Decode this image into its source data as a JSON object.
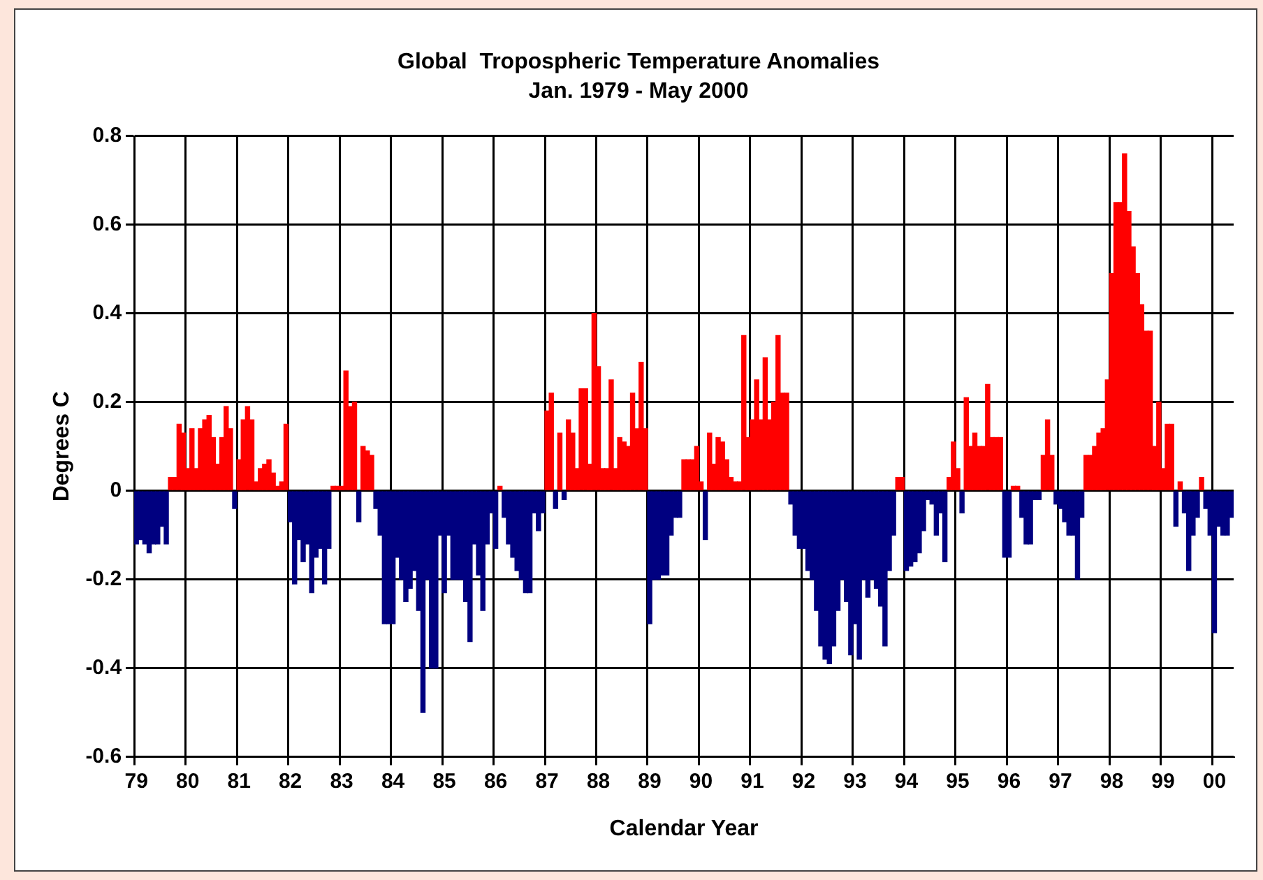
{
  "chart_data": {
    "type": "bar",
    "title": "Global  Tropospheric Temperature Anomalies",
    "subtitle": "Jan. 1979 - May 2000",
    "xlabel": "Calendar Year",
    "ylabel": "Degrees C",
    "categories": [
      "79",
      null,
      null,
      null,
      null,
      null,
      null,
      null,
      null,
      null,
      null,
      null,
      "80",
      null,
      null,
      null,
      null,
      null,
      null,
      null,
      null,
      null,
      null,
      null,
      "81",
      null,
      null,
      null,
      null,
      null,
      null,
      null,
      null,
      null,
      null,
      null,
      "82",
      null,
      null,
      null,
      null,
      null,
      null,
      null,
      null,
      null,
      null,
      null,
      "83",
      null,
      null,
      null,
      null,
      null,
      null,
      null,
      null,
      null,
      null,
      null,
      "84",
      null,
      null,
      null,
      null,
      null,
      null,
      null,
      null,
      null,
      null,
      null,
      "85",
      null,
      null,
      null,
      null,
      null,
      null,
      null,
      null,
      null,
      null,
      null,
      "86",
      null,
      null,
      null,
      null,
      null,
      null,
      null,
      null,
      null,
      null,
      null,
      "87",
      null,
      null,
      null,
      null,
      null,
      null,
      null,
      null,
      null,
      null,
      null,
      "88",
      null,
      null,
      null,
      null,
      null,
      null,
      null,
      null,
      null,
      null,
      null,
      "89",
      null,
      null,
      null,
      null,
      null,
      null,
      null,
      null,
      null,
      null,
      null,
      "90",
      null,
      null,
      null,
      null,
      null,
      null,
      null,
      null,
      null,
      null,
      null,
      "91",
      null,
      null,
      null,
      null,
      null,
      null,
      null,
      null,
      null,
      null,
      null,
      "92",
      null,
      null,
      null,
      null,
      null,
      null,
      null,
      null,
      null,
      null,
      null,
      "93",
      null,
      null,
      null,
      null,
      null,
      null,
      null,
      null,
      null,
      null,
      null,
      "94",
      null,
      null,
      null,
      null,
      null,
      null,
      null,
      null,
      null,
      null,
      null,
      "95",
      null,
      null,
      null,
      null,
      null,
      null,
      null,
      null,
      null,
      null,
      null,
      "96",
      null,
      null,
      null,
      null,
      null,
      null,
      null,
      null,
      null,
      null,
      null,
      "97",
      null,
      null,
      null,
      null,
      null,
      null,
      null,
      null,
      null,
      null,
      null,
      "98",
      null,
      null,
      null,
      null,
      null,
      null,
      null,
      null,
      null,
      null,
      null,
      "99",
      null,
      null,
      null,
      null,
      null,
      null,
      null,
      null,
      null,
      null,
      null,
      "00",
      null,
      null,
      null,
      null
    ],
    "values": [
      -0.12,
      -0.11,
      -0.12,
      -0.14,
      -0.12,
      -0.12,
      -0.08,
      -0.12,
      0.03,
      0.03,
      0.15,
      0.13,
      0.05,
      0.14,
      0.05,
      0.14,
      0.16,
      0.17,
      0.12,
      0.06,
      0.12,
      0.19,
      0.14,
      -0.04,
      0.07,
      0.16,
      0.19,
      0.16,
      0.02,
      0.05,
      0.06,
      0.07,
      0.04,
      0.01,
      0.02,
      0.15,
      -0.07,
      -0.21,
      -0.11,
      -0.16,
      -0.12,
      -0.23,
      -0.15,
      -0.13,
      -0.21,
      -0.13,
      0.01,
      0.01,
      0.01,
      0.27,
      0.19,
      0.2,
      -0.07,
      0.1,
      0.09,
      0.08,
      -0.04,
      -0.1,
      -0.3,
      -0.3,
      -0.3,
      -0.15,
      -0.2,
      -0.25,
      -0.22,
      -0.18,
      -0.27,
      -0.5,
      -0.2,
      -0.4,
      -0.4,
      -0.1,
      -0.23,
      -0.1,
      -0.2,
      -0.2,
      -0.2,
      -0.25,
      -0.34,
      -0.12,
      -0.19,
      -0.27,
      -0.12,
      -0.05,
      -0.13,
      0.01,
      -0.06,
      -0.12,
      -0.15,
      -0.18,
      -0.2,
      -0.23,
      -0.23,
      -0.05,
      -0.09,
      -0.05,
      0.18,
      0.22,
      -0.04,
      0.13,
      -0.02,
      0.16,
      0.13,
      0.05,
      0.23,
      0.23,
      0.06,
      0.4,
      0.28,
      0.05,
      0.05,
      0.25,
      0.05,
      0.12,
      0.11,
      0.1,
      0.22,
      0.14,
      0.29,
      0.14,
      -0.3,
      -0.2,
      -0.2,
      -0.19,
      -0.19,
      -0.1,
      -0.06,
      -0.06,
      0.07,
      0.07,
      0.07,
      0.1,
      0.02,
      -0.11,
      0.13,
      0.06,
      0.12,
      0.11,
      0.07,
      0.03,
      0.02,
      0.02,
      0.35,
      0.12,
      0.16,
      0.25,
      0.16,
      0.3,
      0.16,
      0.2,
      0.35,
      0.22,
      0.22,
      -0.03,
      -0.1,
      -0.13,
      -0.13,
      -0.18,
      -0.2,
      -0.27,
      -0.35,
      -0.38,
      -0.39,
      -0.35,
      -0.27,
      -0.2,
      -0.25,
      -0.37,
      -0.3,
      -0.38,
      -0.2,
      -0.24,
      -0.2,
      -0.22,
      -0.26,
      -0.35,
      -0.18,
      -0.1,
      0.03,
      0.03,
      -0.18,
      -0.17,
      -0.16,
      -0.14,
      -0.09,
      -0.02,
      -0.03,
      -0.1,
      -0.05,
      -0.16,
      0.03,
      0.11,
      0.05,
      -0.05,
      0.21,
      0.1,
      0.13,
      0.1,
      0.1,
      0.24,
      0.12,
      0.12,
      0.12,
      -0.15,
      -0.15,
      0.01,
      0.01,
      -0.06,
      -0.12,
      -0.12,
      -0.02,
      -0.02,
      0.08,
      0.16,
      0.08,
      -0.03,
      -0.04,
      -0.07,
      -0.1,
      -0.1,
      -0.2,
      -0.06,
      0.08,
      0.08,
      0.1,
      0.13,
      0.14,
      0.25,
      0.49,
      0.65,
      0.65,
      0.76,
      0.63,
      0.55,
      0.49,
      0.42,
      0.36,
      0.36,
      0.1,
      0.2,
      0.05,
      0.15,
      0.15,
      -0.08,
      0.02,
      -0.05,
      -0.18,
      -0.1,
      -0.06,
      0.03,
      -0.04,
      -0.1,
      -0.32,
      -0.08,
      -0.1,
      -0.1,
      -0.06
    ],
    "colors": [
      "#000080",
      "#000080",
      "#000080",
      "#000080",
      "#000080",
      "#000080",
      "#000080",
      "#000080",
      "#ff0000",
      "#ff0000",
      "#ff0000",
      "#ff0000",
      "#ff0000",
      "#ff0000",
      "#ff0000",
      "#ff0000",
      "#ff0000",
      "#ff0000",
      "#ff0000",
      "#ff0000",
      "#ff0000",
      "#ff0000",
      "#ff0000",
      "#000080",
      "#ff0000",
      "#ff0000",
      "#ff0000",
      "#ff0000",
      "#ff0000",
      "#ff0000",
      "#ff0000",
      "#ff0000",
      "#ff0000",
      "#ff0000",
      "#ff0000",
      "#ff0000",
      "#000080",
      "#000080",
      "#000080",
      "#000080",
      "#000080",
      "#000080",
      "#000080",
      "#000080",
      "#000080",
      "#000080",
      "#ff0000",
      "#ff0000",
      "#ff0000",
      "#ff0000",
      "#ff0000",
      "#ff0000",
      "#000080",
      "#ff0000",
      "#ff0000",
      "#ff0000",
      "#000080",
      "#000080",
      "#000080",
      "#000080",
      "#000080",
      "#000080",
      "#000080",
      "#000080",
      "#000080",
      "#000080",
      "#000080",
      "#000080",
      "#000080",
      "#000080",
      "#000080",
      "#000080",
      "#000080",
      "#000080",
      "#000080",
      "#000080",
      "#000080",
      "#000080",
      "#000080",
      "#000080",
      "#000080",
      "#000080",
      "#000080",
      "#000080",
      "#000080",
      "#ff0000",
      "#000080",
      "#000080",
      "#000080",
      "#000080",
      "#000080",
      "#000080",
      "#000080",
      "#000080",
      "#000080",
      "#000080",
      "#ff0000",
      "#ff0000",
      "#000080",
      "#ff0000",
      "#000080",
      "#ff0000",
      "#ff0000",
      "#ff0000",
      "#ff0000",
      "#ff0000",
      "#ff0000",
      "#ff0000",
      "#ff0000",
      "#ff0000",
      "#ff0000",
      "#ff0000",
      "#ff0000",
      "#ff0000",
      "#ff0000",
      "#ff0000",
      "#ff0000",
      "#ff0000",
      "#ff0000",
      "#ff0000",
      "#000080",
      "#000080",
      "#000080",
      "#000080",
      "#000080",
      "#000080",
      "#000080",
      "#000080",
      "#ff0000",
      "#ff0000",
      "#ff0000",
      "#ff0000",
      "#ff0000",
      "#000080",
      "#ff0000",
      "#ff0000",
      "#ff0000",
      "#ff0000",
      "#ff0000",
      "#ff0000",
      "#ff0000",
      "#ff0000",
      "#ff0000",
      "#ff0000",
      "#ff0000",
      "#ff0000",
      "#ff0000",
      "#ff0000",
      "#ff0000",
      "#ff0000",
      "#ff0000",
      "#ff0000",
      "#ff0000",
      "#000080",
      "#000080",
      "#000080",
      "#000080",
      "#000080",
      "#000080",
      "#000080",
      "#000080",
      "#000080",
      "#000080",
      "#000080",
      "#000080",
      "#000080",
      "#000080",
      "#000080",
      "#000080",
      "#000080",
      "#000080",
      "#000080",
      "#000080",
      "#000080",
      "#000080",
      "#000080",
      "#000080",
      "#000080",
      "#ff0000",
      "#ff0000",
      "#000080",
      "#000080",
      "#000080",
      "#000080",
      "#000080",
      "#000080",
      "#000080",
      "#000080",
      "#000080",
      "#000080",
      "#ff0000",
      "#ff0000",
      "#ff0000",
      "#000080",
      "#ff0000",
      "#ff0000",
      "#ff0000",
      "#ff0000",
      "#ff0000",
      "#ff0000",
      "#ff0000",
      "#ff0000",
      "#ff0000",
      "#000080",
      "#000080",
      "#ff0000",
      "#ff0000",
      "#000080",
      "#000080",
      "#000080",
      "#000080",
      "#000080",
      "#ff0000",
      "#ff0000",
      "#ff0000",
      "#000080",
      "#000080",
      "#000080",
      "#000080",
      "#000080",
      "#000080",
      "#000080",
      "#ff0000",
      "#ff0000",
      "#ff0000",
      "#ff0000",
      "#ff0000",
      "#ff0000",
      "#ff0000",
      "#ff0000",
      "#ff0000",
      "#ff0000",
      "#ff0000",
      "#ff0000",
      "#ff0000",
      "#ff0000",
      "#ff0000",
      "#ff0000",
      "#ff0000",
      "#ff0000",
      "#ff0000",
      "#ff0000",
      "#ff0000",
      "#000080",
      "#ff0000",
      "#000080",
      "#000080",
      "#000080",
      "#000080",
      "#ff0000",
      "#000080",
      "#000080",
      "#000080",
      "#000080",
      "#000080",
      "#000080",
      "#000080"
    ],
    "ylim": [
      -0.6,
      0.8
    ],
    "yticks": [
      0.8,
      0.6,
      0.4,
      0.2,
      0,
      -0.2,
      -0.4,
      -0.6
    ],
    "grid": true
  }
}
